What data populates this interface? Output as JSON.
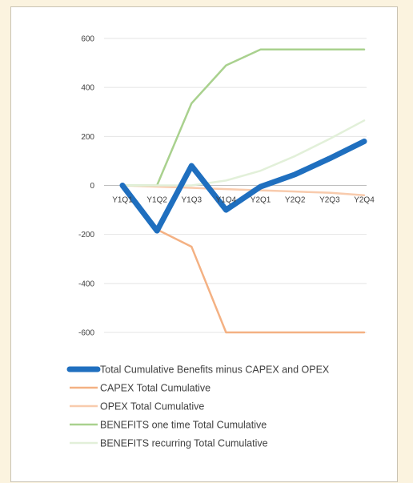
{
  "chart_data": {
    "type": "line",
    "title": "",
    "xlabel": "",
    "ylabel": "",
    "categories": [
      "Y1Q1",
      "Y1Q2",
      "Y1Q3",
      "Y1Q4",
      "Y2Q1",
      "Y2Q2",
      "Y2Q3",
      "Y2Q4"
    ],
    "ylim": [
      -600,
      600
    ],
    "yticks": [
      600,
      400,
      200,
      0,
      -200,
      -400,
      -600
    ],
    "grid": true,
    "legend_position": "bottom",
    "series": [
      {
        "name": "Total Cumulative Benefits minus CAPEX and OPEX",
        "color": "#1f6fbf",
        "width": 7,
        "values": [
          0,
          -185,
          80,
          -100,
          -5,
          45,
          110,
          180
        ]
      },
      {
        "name": "CAPEX Total Cumulative",
        "color": "#f4b183",
        "width": 2.5,
        "values": [
          0,
          -180,
          -250,
          -600,
          -600,
          -600,
          -600,
          -600
        ]
      },
      {
        "name": "OPEX Total Cumulative",
        "color": "#f8cbad",
        "width": 2.5,
        "values": [
          0,
          -5,
          -10,
          -15,
          -20,
          -25,
          -30,
          -40
        ]
      },
      {
        "name": "BENEFITS one time Total Cumulative",
        "color": "#a9d18e",
        "width": 2.5,
        "values": [
          0,
          0,
          335,
          490,
          555,
          555,
          555,
          555
        ]
      },
      {
        "name": "BENEFITS recurring Total Cumulative",
        "color": "#e2f0d9",
        "width": 2.5,
        "values": [
          0,
          0,
          0,
          20,
          60,
          120,
          190,
          265
        ]
      }
    ]
  }
}
